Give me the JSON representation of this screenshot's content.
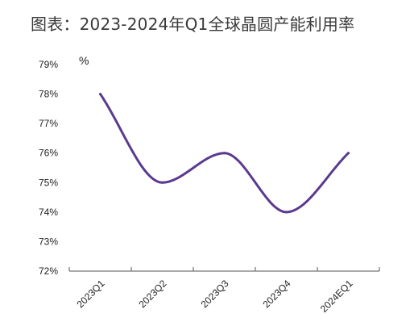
{
  "chart_data": {
    "type": "line",
    "title": "图表：2023-2024年Q1全球晶圆产能利用率",
    "ylabel": "%",
    "xlabel": "",
    "categories": [
      "2023Q1",
      "2023Q2",
      "2023Q3",
      "2023Q4",
      "2024EQ1"
    ],
    "series": [
      {
        "values": [
          78,
          75,
          76,
          74,
          76
        ]
      }
    ],
    "ylim": [
      72,
      79
    ],
    "yticks": [
      "72%",
      "73%",
      "74%",
      "75%",
      "76%",
      "77%",
      "78%",
      "79%"
    ],
    "line_color": "#5b3a8e",
    "grid": false,
    "legend": "none",
    "smooth": true
  }
}
